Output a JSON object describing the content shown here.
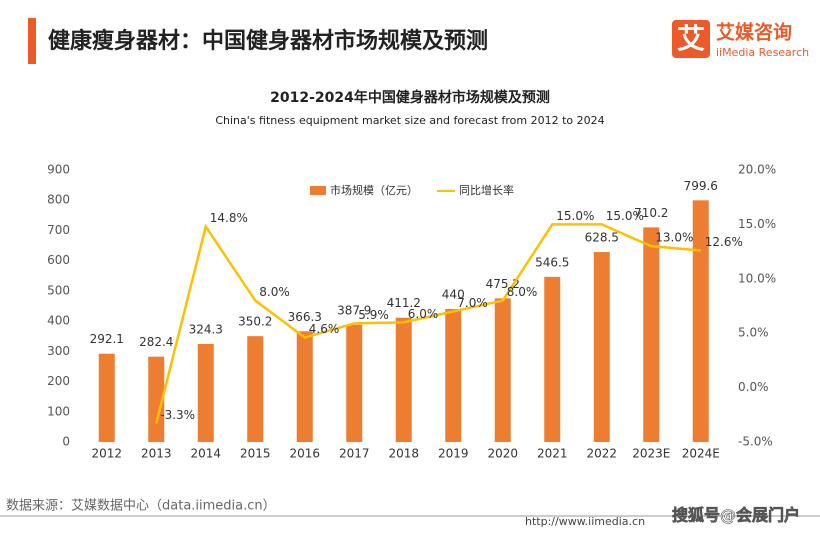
{
  "header": {
    "title": "健康瘦身器材：中国健身器材市场规模及预测",
    "logo_icon": "艾",
    "logo_name": "艾媒咨询",
    "logo_sub": "iiMedia Research"
  },
  "footer": {
    "source": "数据来源：艾媒数据中心（data.iimedia.cn）",
    "url": "http://www.iimedia.cn",
    "watermark": "搜狐号@会展门户"
  },
  "chart_data": {
    "type": "bar-line",
    "title": "2012-2024年中国健身器材市场规模及预测",
    "subtitle": "China's fitness equipment market size and forecast from 2012 to 2024",
    "categories": [
      "2012",
      "2013",
      "2014",
      "2015",
      "2016",
      "2017",
      "2018",
      "2019",
      "2020",
      "2021",
      "2022",
      "2023E",
      "2024E"
    ],
    "series": [
      {
        "name": "市场规模（亿元）",
        "type": "bar",
        "color": "#ED7D31",
        "values": [
          292.1,
          282.4,
          324.3,
          350.2,
          366.3,
          387.9,
          411.2,
          440,
          475.2,
          546.5,
          628.5,
          710.2,
          799.6
        ]
      },
      {
        "name": "同比增长率",
        "type": "line",
        "axis": "y2",
        "color": "#FFC000",
        "values": [
          null,
          -3.3,
          14.8,
          8.0,
          4.6,
          5.9,
          6.0,
          7.0,
          8.0,
          15.0,
          15.0,
          13.0,
          12.6
        ],
        "value_labels": [
          null,
          "-3.3%",
          "14.8%",
          "8.0%",
          "4.6%",
          "5.9%",
          "6.0%",
          "7.0%",
          "8.0%",
          "15.0%",
          "15.0%",
          "13.0%",
          "12.6%"
        ]
      }
    ],
    "ylim": [
      0,
      900
    ],
    "yticks": [
      0,
      100,
      200,
      300,
      400,
      500,
      600,
      700,
      800,
      900
    ],
    "y2lim": [
      -5,
      20
    ],
    "y2ticks": [
      {
        "value": -5,
        "label": "-5.0%"
      },
      {
        "value": 0,
        "label": "0.0%"
      },
      {
        "value": 5,
        "label": "5.0%"
      },
      {
        "value": 10,
        "label": "10.0%"
      },
      {
        "value": 15,
        "label": "15.0%"
      },
      {
        "value": 20,
        "label": "20.0%"
      }
    ],
    "grid": false
  }
}
